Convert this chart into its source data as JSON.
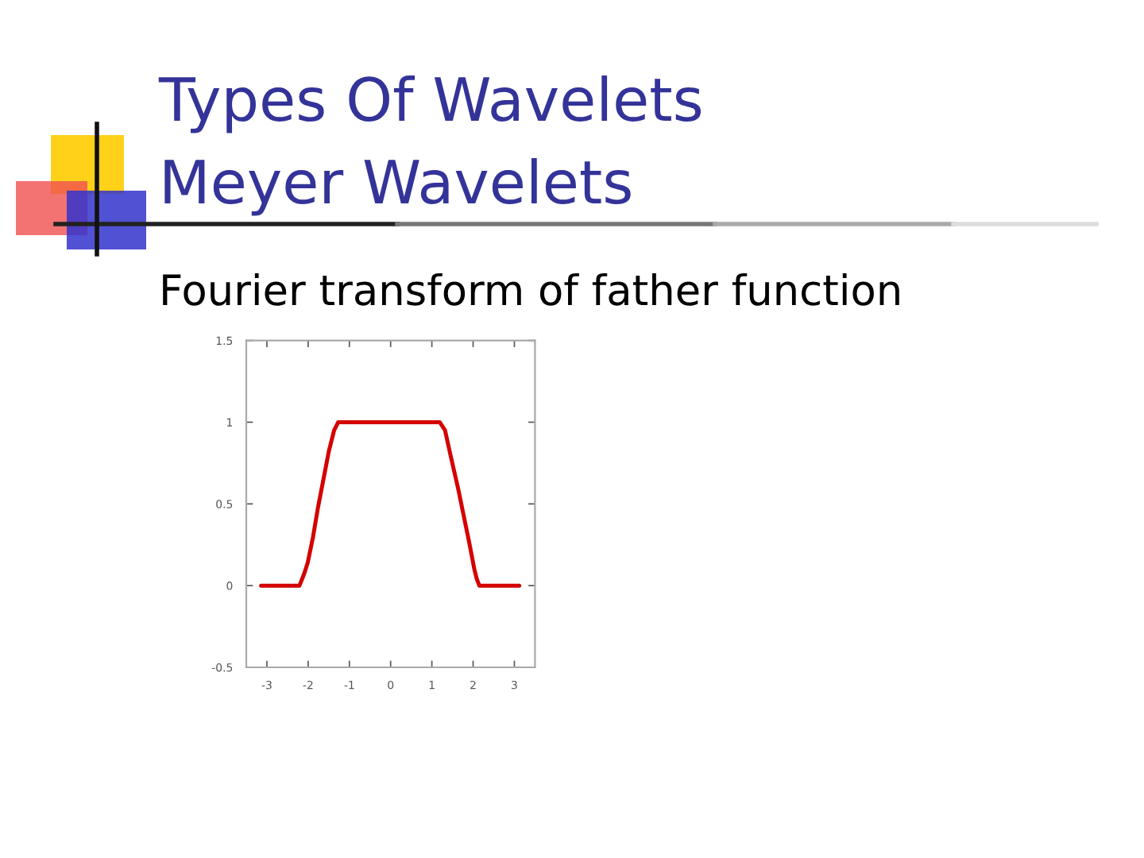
{
  "chart_data": {
    "type": "line",
    "title": "Types Of Wavelets",
    "subtitle": "Meyer Wavelets",
    "annotations": [
      "Fourier transform of father function"
    ],
    "x": [
      -3.14,
      -2.21,
      -2.1,
      -2.01,
      -1.88,
      -1.76,
      -1.63,
      -1.5,
      -1.37,
      -1.27,
      1.19,
      1.32,
      1.45,
      1.64,
      1.77,
      1.9,
      2.03,
      2.09,
      2.15,
      3.12
    ],
    "values": [
      0,
      0,
      0.07,
      0.14,
      0.3,
      0.48,
      0.65,
      0.82,
      0.95,
      1,
      1,
      0.95,
      0.8,
      0.59,
      0.43,
      0.27,
      0.1,
      0.04,
      0,
      0
    ],
    "color": "#d40000",
    "xlim": [
      -3.5,
      3.5
    ],
    "xticks": [
      -3,
      -2,
      -1,
      0,
      1,
      2,
      3
    ],
    "ylim": [
      -0.5,
      1.5
    ],
    "yticks": [
      -0.5,
      0,
      0.5,
      1,
      1.5
    ]
  }
}
